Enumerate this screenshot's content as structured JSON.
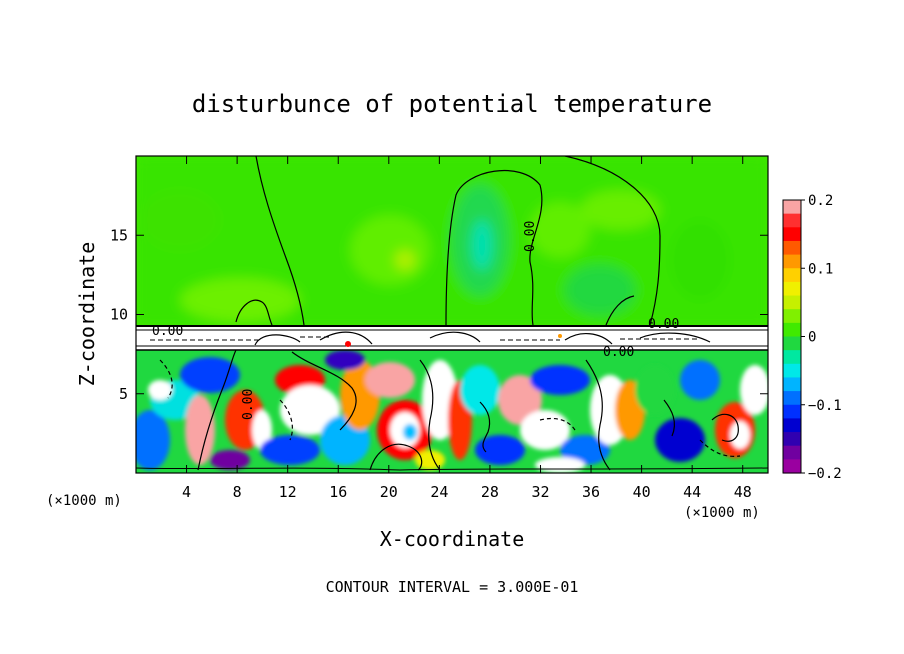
{
  "chart_data": {
    "type": "heatmap",
    "title": "disturbunce of potential temperature",
    "xlabel": "X-coordinate",
    "ylabel": "Z-coordinate",
    "x_unit_left": "(×1000 m)",
    "x_unit_right": "(×1000 m)",
    "xlim": [
      0,
      50
    ],
    "ylim": [
      0,
      20
    ],
    "x_ticks": [
      4,
      8,
      12,
      16,
      20,
      24,
      28,
      32,
      36,
      40,
      44,
      48
    ],
    "y_ticks": [
      5,
      10,
      15
    ],
    "colorbar": {
      "min": -0.2,
      "max": 0.2,
      "ticks": [
        "0.2",
        "0.1",
        "0",
        "−0.1",
        "−0.2"
      ],
      "colors": [
        "#f9a4a4",
        "#ff3030",
        "#ff0000",
        "#ff5a00",
        "#ff9900",
        "#ffd000",
        "#f0f000",
        "#c6f000",
        "#80f000",
        "#40ea00",
        "#20d840",
        "#00e8a0",
        "#00e8e8",
        "#00b4ff",
        "#0070ff",
        "#0030ff",
        "#0000d0",
        "#3000b0",
        "#7000a0",
        "#9a00a0"
      ]
    },
    "contour_labels": [
      "0.00",
      "0.00",
      "0.00",
      "0.00",
      "0.00"
    ],
    "contour_interval_text": "CONTOUR INTERVAL = 3.000E-01",
    "upper_layer_value": "≈0 (weak positive)",
    "boundary_layer_top": 7.8,
    "inversion_layer": [
      7.8,
      9.3
    ]
  }
}
